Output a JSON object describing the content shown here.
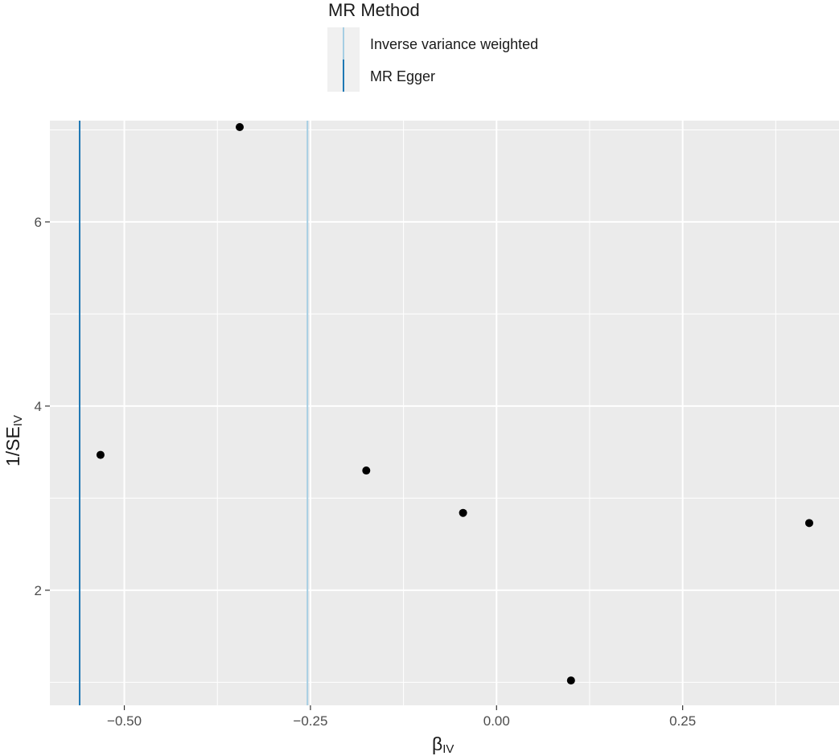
{
  "chart_data": {
    "type": "scatter",
    "xlabel_main": "β",
    "xlabel_sub": "IV",
    "ylabel_main": "1/SE",
    "ylabel_sub": "IV",
    "xlim": [
      -0.6,
      0.46
    ],
    "ylim": [
      0.75,
      7.1
    ],
    "x_ticks": [
      -0.5,
      -0.25,
      0.0,
      0.25
    ],
    "x_tick_labels": [
      "−0.50",
      "−0.25",
      "0.00",
      "0.25"
    ],
    "y_ticks": [
      2,
      4,
      6
    ],
    "y_tick_labels": [
      "2",
      "4",
      "6"
    ],
    "grid": true,
    "points": [
      {
        "x": -0.532,
        "y": 3.47
      },
      {
        "x": -0.345,
        "y": 7.03
      },
      {
        "x": -0.175,
        "y": 3.3
      },
      {
        "x": -0.045,
        "y": 2.84
      },
      {
        "x": 0.1,
        "y": 1.02
      },
      {
        "x": 0.42,
        "y": 2.73
      }
    ],
    "lines": [
      {
        "name": "Inverse variance weighted",
        "x": -0.254,
        "color": "#a6cee3"
      },
      {
        "name": "MR Egger",
        "x": -0.56,
        "color": "#1f78b4"
      }
    ],
    "legend": {
      "title": "MR Method",
      "position": "top",
      "items": [
        {
          "label": "Inverse variance weighted",
          "color": "#a6cee3"
        },
        {
          "label": "MR Egger",
          "color": "#1f78b4"
        }
      ]
    }
  }
}
